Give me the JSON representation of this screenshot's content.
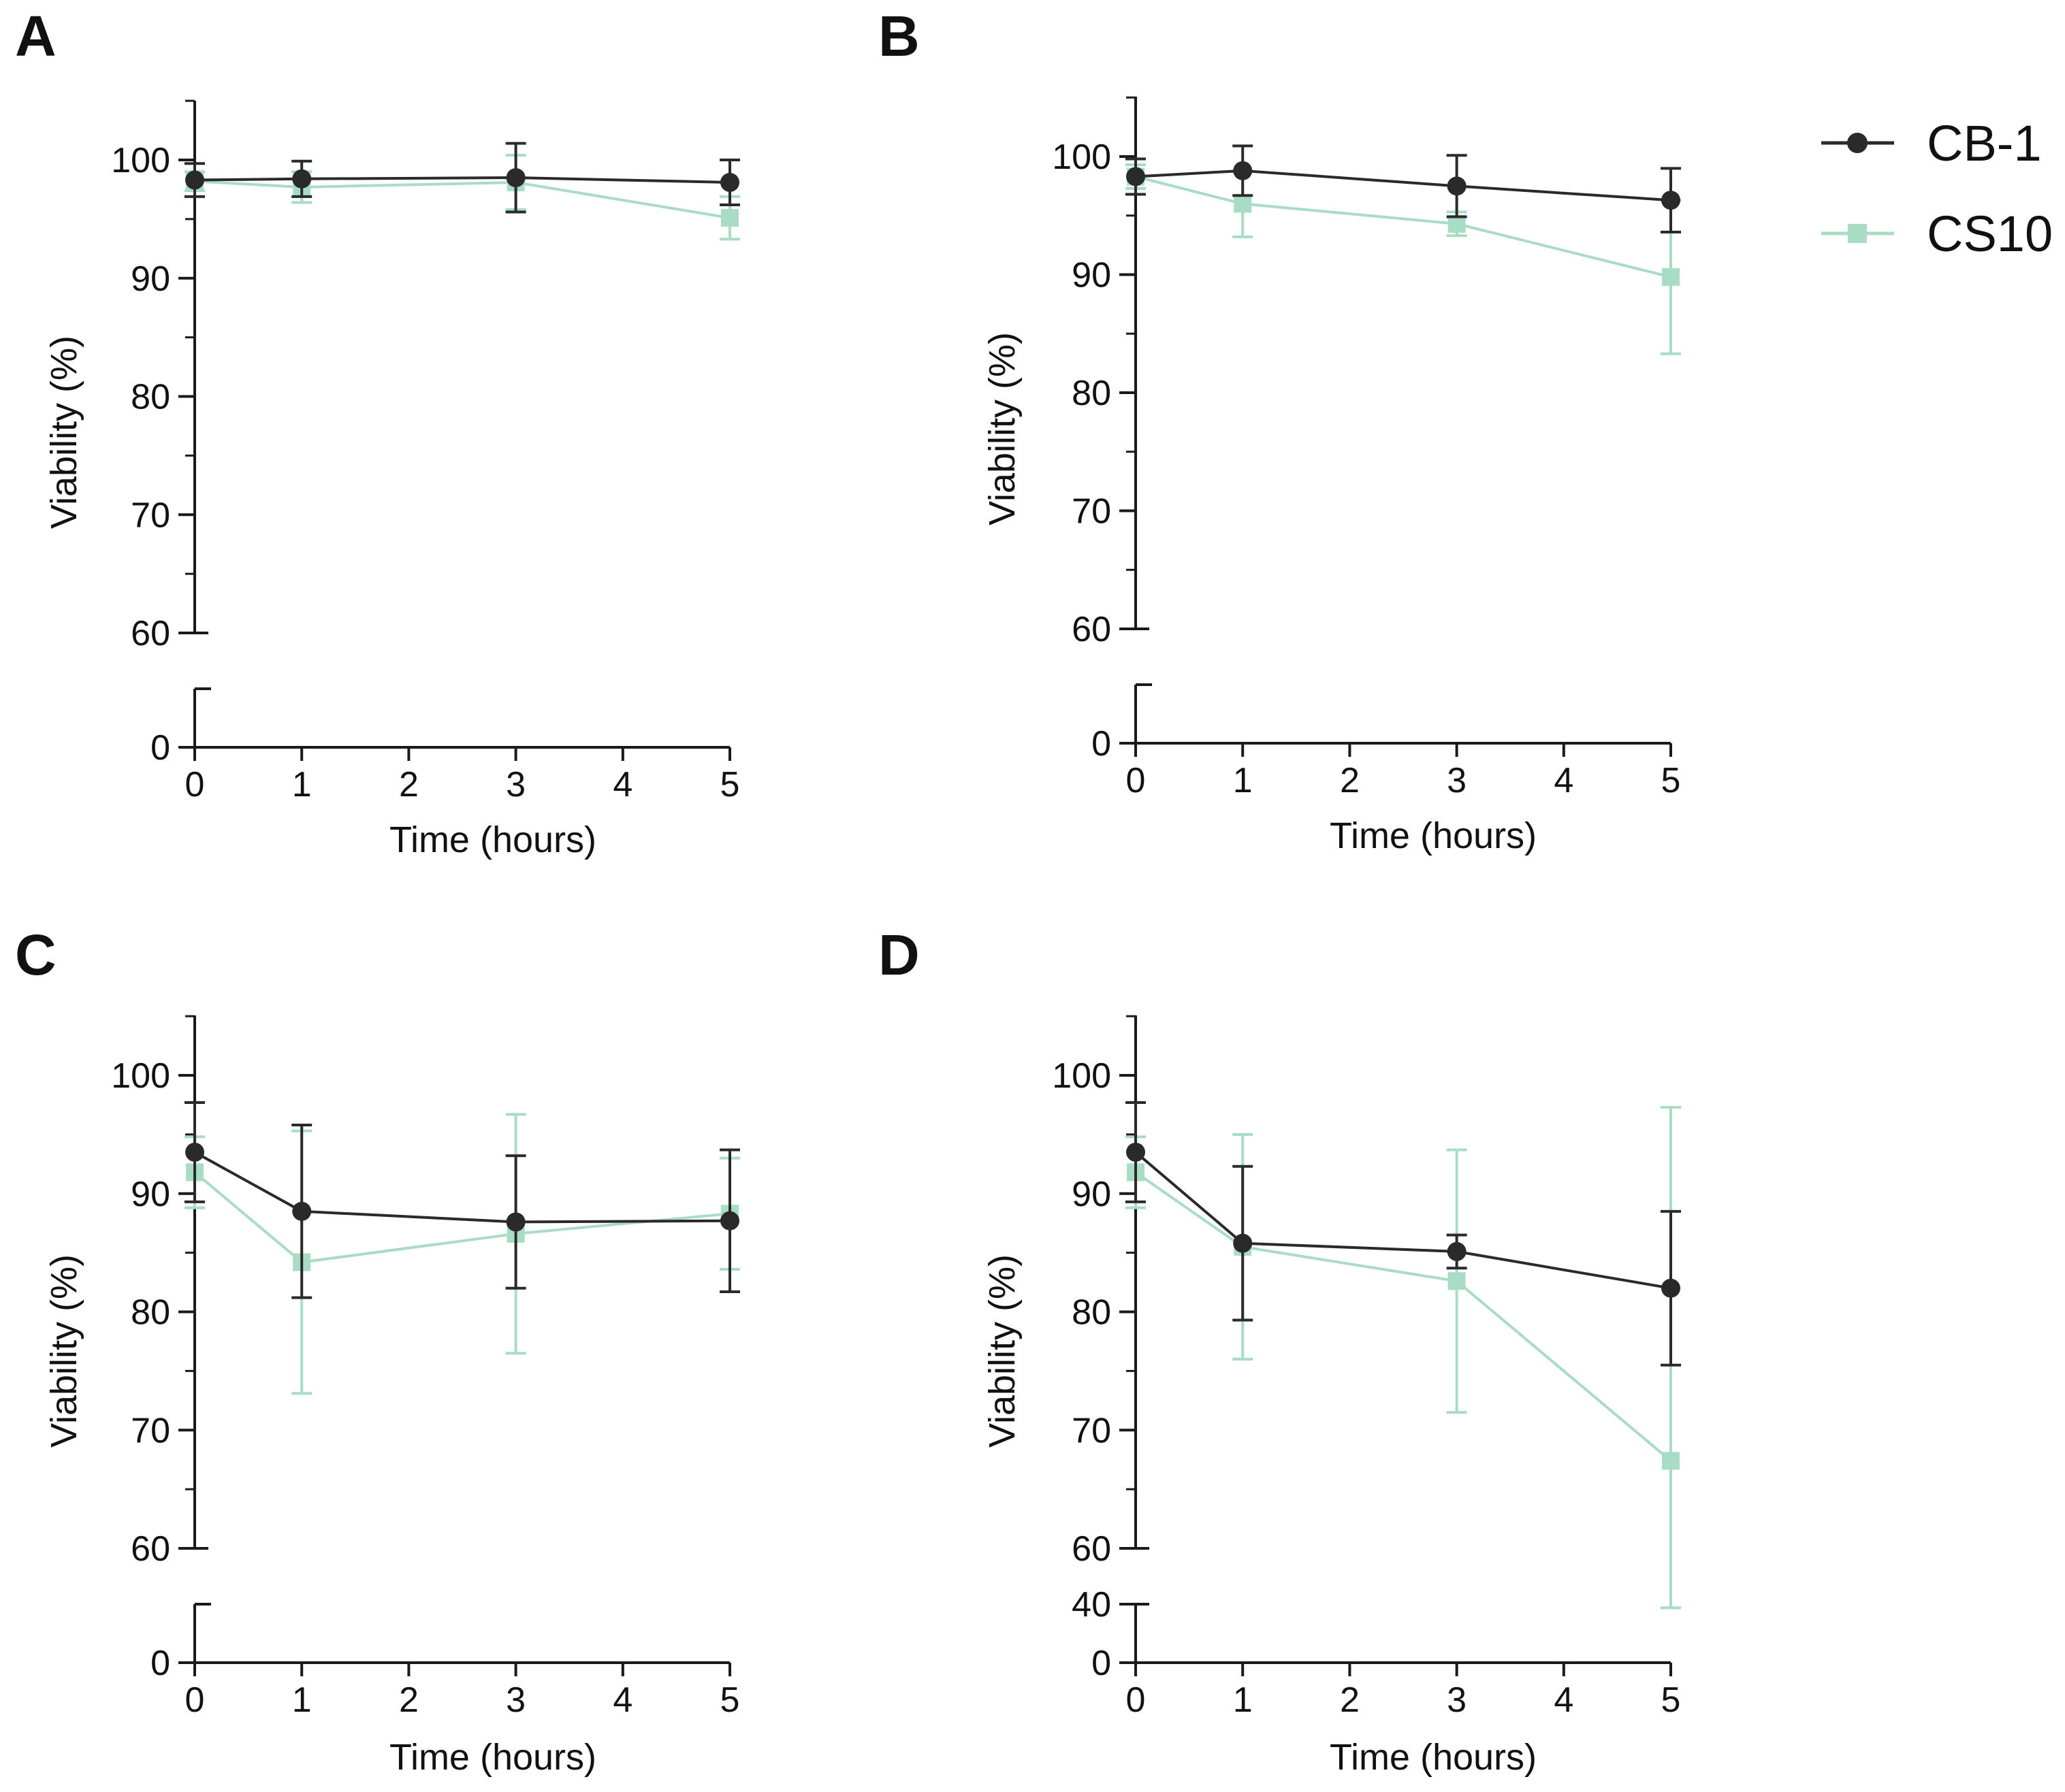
{
  "figure": {
    "legend": [
      {
        "name": "CB-1",
        "color": "#2a2a2a",
        "marker": "circle"
      },
      {
        "name": "CS10",
        "color": "#a8dcc4",
        "marker": "square"
      }
    ]
  },
  "chart_data": [
    {
      "panel": "A",
      "type": "line",
      "title": "",
      "xlabel": "Time (hours)",
      "ylabel": "Viability (%)",
      "x_ticks": [
        0,
        1,
        2,
        3,
        4,
        5
      ],
      "y_ticks_upper": [
        60,
        70,
        80,
        90,
        100
      ],
      "y_ticks_lower": [
        0
      ],
      "ylim_upper": [
        60,
        105
      ],
      "ylim_lower": [
        0,
        5
      ],
      "grid": false,
      "legend_position": "top-right",
      "series": [
        {
          "name": "CS10",
          "color": "#a8dcc4",
          "marker": "square",
          "x": [
            0,
            1,
            3,
            5
          ],
          "y": [
            98.2,
            97.7,
            98.1,
            95.1
          ],
          "err": [
            0.8,
            1.3,
            2.3,
            1.8
          ]
        },
        {
          "name": "CB-1",
          "color": "#2a2a2a",
          "marker": "circle",
          "x": [
            0,
            1,
            3,
            5
          ],
          "y": [
            98.3,
            98.4,
            98.5,
            98.1
          ],
          "err": [
            1.4,
            1.5,
            2.9,
            1.9
          ]
        }
      ]
    },
    {
      "panel": "B",
      "type": "line",
      "title": "",
      "xlabel": "Time (hours)",
      "ylabel": "Viability (%)",
      "x_ticks": [
        0,
        1,
        2,
        3,
        4,
        5
      ],
      "y_ticks_upper": [
        60,
        70,
        80,
        90,
        100
      ],
      "y_ticks_lower": [
        0
      ],
      "ylim_upper": [
        60,
        105
      ],
      "ylim_lower": [
        0,
        5
      ],
      "grid": false,
      "legend_position": "top-right",
      "series": [
        {
          "name": "CS10",
          "color": "#a8dcc4",
          "marker": "square",
          "x": [
            0,
            1,
            3,
            5
          ],
          "y": [
            98.3,
            96.0,
            94.3,
            89.8
          ],
          "err": [
            1.0,
            2.8,
            1.0,
            6.5
          ]
        },
        {
          "name": "CB-1",
          "color": "#2a2a2a",
          "marker": "circle",
          "x": [
            0,
            1,
            3,
            5
          ],
          "y": [
            98.3,
            98.8,
            97.5,
            96.3
          ],
          "err": [
            1.5,
            2.1,
            2.6,
            2.7
          ]
        }
      ]
    },
    {
      "panel": "C",
      "type": "line",
      "title": "",
      "xlabel": "Time (hours)",
      "ylabel": "Viability (%)",
      "x_ticks": [
        0,
        1,
        2,
        3,
        4,
        5
      ],
      "y_ticks_upper": [
        60,
        70,
        80,
        90,
        100
      ],
      "y_ticks_lower": [
        0
      ],
      "ylim_upper": [
        60,
        105
      ],
      "ylim_lower": [
        0,
        5
      ],
      "grid": false,
      "legend_position": "top-right",
      "series": [
        {
          "name": "CS10",
          "color": "#a8dcc4",
          "marker": "square",
          "x": [
            0,
            1,
            3,
            5
          ],
          "y": [
            91.8,
            84.2,
            86.6,
            88.3
          ],
          "err": [
            3.0,
            11.1,
            10.1,
            4.7
          ]
        },
        {
          "name": "CB-1",
          "color": "#2a2a2a",
          "marker": "circle",
          "x": [
            0,
            1,
            3,
            5
          ],
          "y": [
            93.5,
            88.5,
            87.6,
            87.7
          ],
          "err": [
            4.2,
            7.3,
            5.6,
            6.0
          ]
        }
      ]
    },
    {
      "panel": "D",
      "type": "line",
      "title": "",
      "xlabel": "Time (hours)",
      "ylabel": "Viability (%)",
      "x_ticks": [
        0,
        1,
        2,
        3,
        4,
        5
      ],
      "y_ticks_upper": [
        60,
        70,
        80,
        90,
        100
      ],
      "y_ticks_lower": [
        0,
        40
      ],
      "ylim_upper": [
        60,
        105
      ],
      "ylim_lower": [
        0,
        40
      ],
      "grid": false,
      "legend_position": "top-right",
      "series": [
        {
          "name": "CS10",
          "color": "#a8dcc4",
          "marker": "square",
          "x": [
            0,
            1,
            3,
            5
          ],
          "y": [
            91.8,
            85.5,
            82.6,
            67.4
          ],
          "err": [
            3.0,
            9.5,
            11.1,
            29.9
          ]
        },
        {
          "name": "CB-1",
          "color": "#2a2a2a",
          "marker": "circle",
          "x": [
            0,
            1,
            3,
            5
          ],
          "y": [
            93.5,
            85.8,
            85.1,
            82.0
          ],
          "err": [
            4.2,
            6.5,
            1.4,
            6.5
          ]
        }
      ]
    }
  ]
}
